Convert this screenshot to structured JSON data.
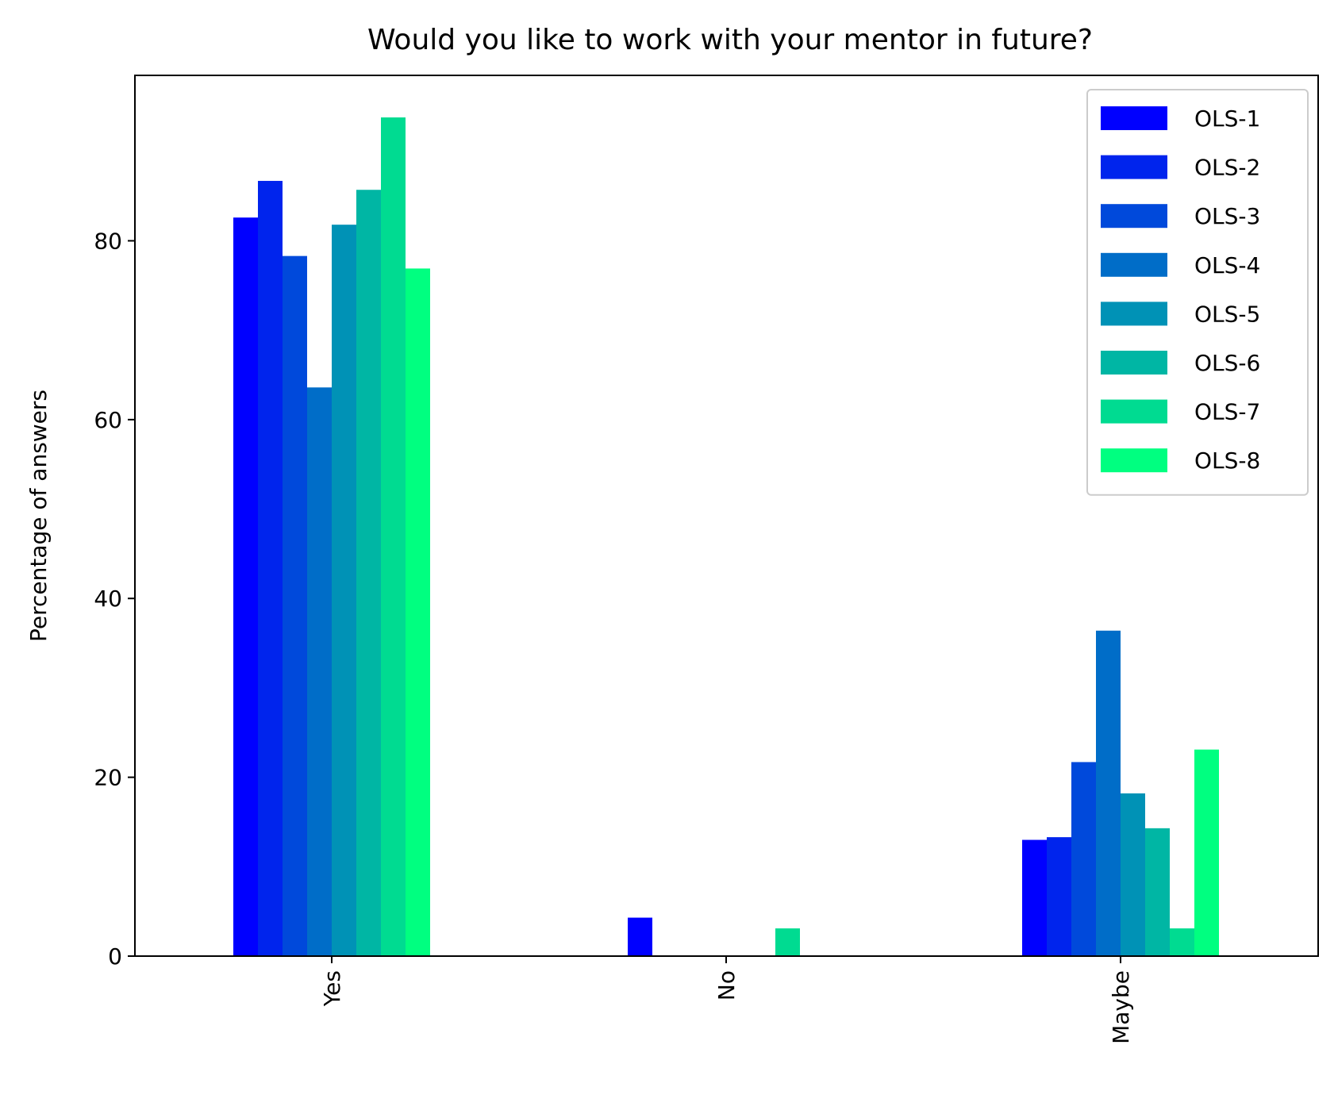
{
  "chart_data": {
    "type": "bar",
    "title": "Would you like to work with your mentor in future?",
    "xlabel": "",
    "ylabel": "Percentage of answers",
    "categories": [
      "Yes",
      "No",
      "Maybe"
    ],
    "ylim": [
      0,
      98.5
    ],
    "yticks": [
      0,
      20,
      40,
      60,
      80
    ],
    "grid": false,
    "legend_position": "top-right",
    "series": [
      {
        "name": "OLS-1",
        "color": "#0000ff",
        "values": [
          82.6,
          4.3,
          13.0
        ]
      },
      {
        "name": "OLS-2",
        "color": "#0024ed",
        "values": [
          86.7,
          0,
          13.3
        ]
      },
      {
        "name": "OLS-3",
        "color": "#0049db",
        "values": [
          78.3,
          0,
          21.7
        ]
      },
      {
        "name": "OLS-4",
        "color": "#006dc8",
        "values": [
          63.6,
          0,
          36.4
        ]
      },
      {
        "name": "OLS-5",
        "color": "#0092b6",
        "values": [
          81.8,
          0,
          18.2
        ]
      },
      {
        "name": "OLS-6",
        "color": "#00b6a4",
        "values": [
          85.7,
          0,
          14.3
        ]
      },
      {
        "name": "OLS-7",
        "color": "#00db91",
        "values": [
          93.8,
          3.1,
          3.1
        ]
      },
      {
        "name": "OLS-8",
        "color": "#00ff80",
        "values": [
          76.9,
          0,
          23.1
        ]
      }
    ]
  }
}
